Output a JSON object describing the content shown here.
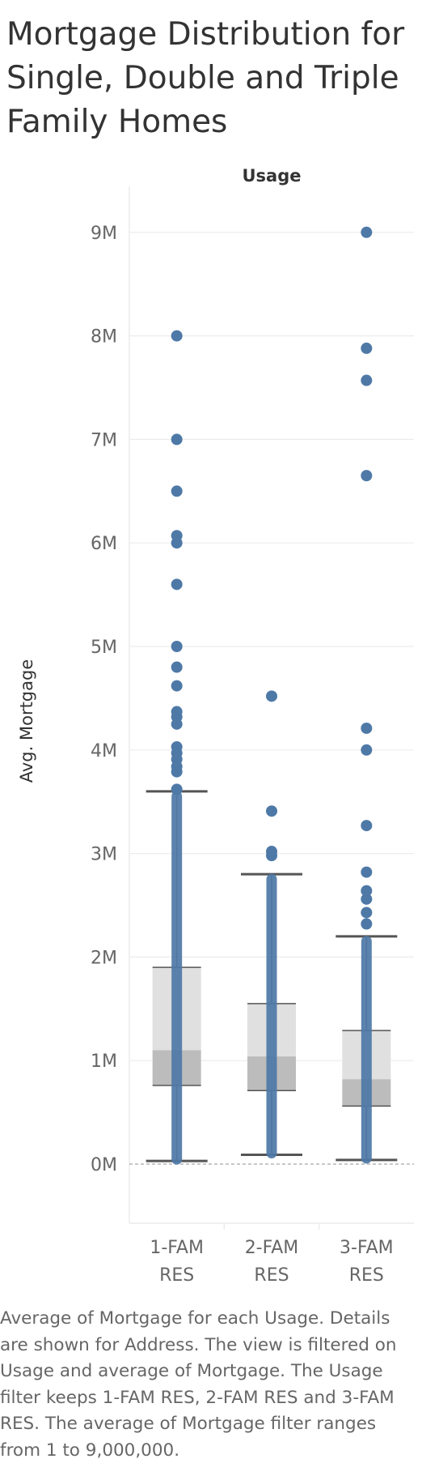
{
  "title_lines": [
    "Mortgage Distribution for",
    "Single, Double and Triple",
    "Family Homes"
  ],
  "description": "Average of Mortgage for each Usage.  Details are shown for Address. The view is filtered on Usage and average of Mortgage. The Usage filter keeps 1-FAM RES, 2-FAM RES and 3-FAM RES. The average of Mortgage filter ranges from 1 to 9,000,000.",
  "colors": {
    "point": "#4e79a7",
    "box_upper": "#e0e0e0",
    "box_lower": "#bcbcbc",
    "whisker": "#555555",
    "grid": "#ececec",
    "text": "#666666",
    "title": "#333333"
  },
  "chart_data": {
    "type": "scatter",
    "subtype": "box-plot with jittered points",
    "column_header": "Usage",
    "ylabel": "Avg. Mortgage",
    "ylim": [
      -0.5,
      9.6
    ],
    "yticks": [
      0,
      1,
      2,
      3,
      4,
      5,
      6,
      7,
      8,
      9
    ],
    "ytick_labels": [
      "0M",
      "1M",
      "2M",
      "3M",
      "4M",
      "5M",
      "6M",
      "7M",
      "8M",
      "9M"
    ],
    "grid": true,
    "categories": [
      {
        "label_lines": [
          "1-FAM",
          "RES"
        ],
        "box": {
          "lower_whisker": 0.03,
          "q1": 0.76,
          "median": 1.1,
          "q3": 1.9,
          "upper_whisker": 3.6
        }
      },
      {
        "label_lines": [
          "2-FAM",
          "RES"
        ],
        "box": {
          "lower_whisker": 0.09,
          "q1": 0.71,
          "median": 1.04,
          "q3": 1.55,
          "upper_whisker": 2.8
        }
      },
      {
        "label_lines": [
          "3-FAM",
          "RES"
        ],
        "box": {
          "lower_whisker": 0.04,
          "q1": 0.56,
          "median": 0.82,
          "q3": 1.29,
          "upper_whisker": 2.2
        }
      }
    ],
    "outliers": [
      [
        8.0,
        7.0,
        6.5,
        6.07,
        6.0,
        5.6,
        5.0,
        4.8,
        4.62,
        4.37,
        4.32,
        4.25,
        4.03,
        3.97,
        3.91,
        3.84,
        3.79,
        3.62
      ],
      [
        4.52,
        3.41,
        3.02,
        2.98
      ],
      [
        9.0,
        7.88,
        7.57,
        6.65,
        4.21,
        4.0,
        3.27,
        2.82,
        2.64,
        2.56,
        2.43,
        2.32
      ]
    ]
  }
}
